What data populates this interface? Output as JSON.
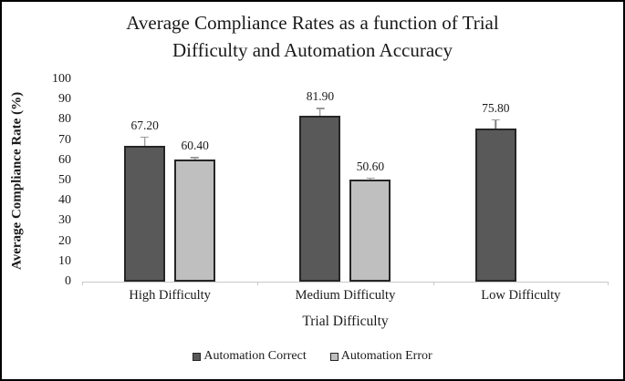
{
  "title": {
    "line1": "Average Compliance Rates as a function of Trial",
    "line2": "Difficulty and Automation Accuracy"
  },
  "chart_data": {
    "type": "bar",
    "title": "Average Compliance Rates as a function of Trial Difficulty and Automation Accuracy",
    "xlabel": "Trial Difficulty",
    "ylabel": "Average Compliance Rate (%)",
    "ylim": [
      0,
      100
    ],
    "ytick_step": 10,
    "grid": false,
    "legend_position": "bottom",
    "categories": [
      "High Difficulty",
      "Medium Difficulty",
      "Low Difficulty"
    ],
    "series": [
      {
        "name": "Automation Correct",
        "fill": "#595959",
        "border": "#262626",
        "values": [
          67.2,
          81.9,
          75.8
        ],
        "value_labels": [
          "67.20",
          "81.90",
          "75.80"
        ],
        "errors": [
          4.5,
          4.0,
          4.5
        ]
      },
      {
        "name": "Automation Error",
        "fill": "#bfbfbf",
        "border": "#262626",
        "values": [
          60.4,
          50.6,
          null
        ],
        "value_labels": [
          "60.40",
          "50.60",
          null
        ],
        "errors": [
          1.2,
          0.9,
          null
        ]
      }
    ]
  },
  "colors": {
    "axis_line": "#c9c9c9",
    "error_bar": "#7f7f7f",
    "text": "#1a1a1a"
  }
}
